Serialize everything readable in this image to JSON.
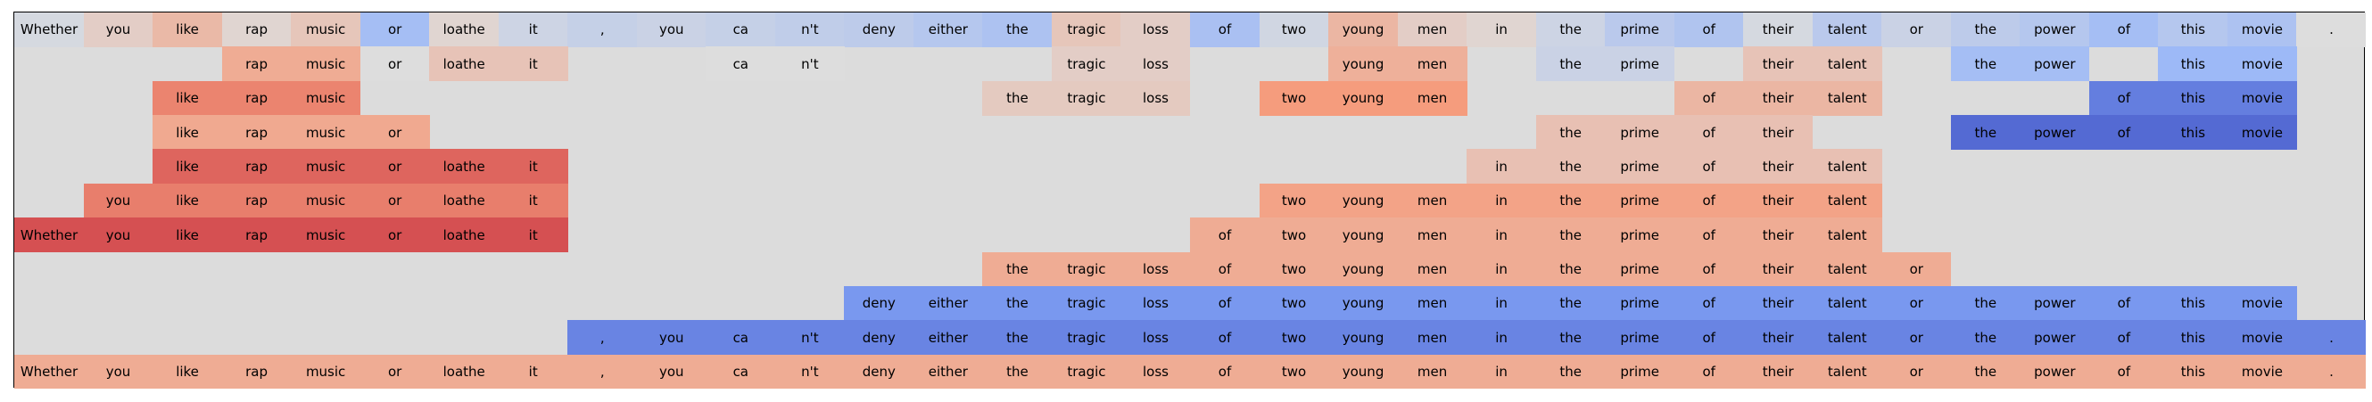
{
  "chart_data": {
    "type": "heatmap",
    "tokens": [
      "Whether",
      "you",
      "like",
      "rap",
      "music",
      "or",
      "loathe",
      "it",
      ",",
      "you",
      "ca",
      "n't",
      "deny",
      "either",
      "the",
      "tragic",
      "loss",
      "of",
      "two",
      "young",
      "men",
      "in",
      "the",
      "prime",
      "of",
      "their",
      "talent",
      "or",
      "the",
      "power",
      "of",
      "this",
      "movie",
      "."
    ],
    "rows": [
      {
        "start": 0,
        "values": [
          -0.05,
          0.12,
          0.28,
          0.06,
          0.18,
          -0.35,
          0.06,
          -0.1,
          -0.15,
          -0.12,
          -0.15,
          -0.18,
          -0.2,
          -0.25,
          -0.3,
          0.18,
          0.12,
          -0.32,
          -0.08,
          0.3,
          0.12,
          0.06,
          -0.1,
          -0.22,
          -0.28,
          -0.05,
          -0.22,
          -0.12,
          -0.2,
          -0.25,
          -0.35,
          -0.25,
          -0.3,
          0.0
        ]
      },
      {
        "start": 3,
        "end": 7,
        "values": [
          0.38,
          0.38,
          0.0,
          0.2,
          0.2
        ]
      },
      {
        "start": 10,
        "end": 11,
        "values": [
          0.0,
          0.0
        ]
      },
      {
        "start": 15,
        "end": 16,
        "values": [
          0.12,
          0.12
        ]
      },
      {
        "start": 19,
        "end": 20,
        "values": [
          0.35,
          0.35
        ]
      },
      {
        "start": 22,
        "end": 23,
        "values": [
          -0.12,
          -0.12
        ]
      },
      {
        "start": 25,
        "end": 26,
        "values": [
          0.2,
          0.2
        ]
      },
      {
        "start": 28,
        "end": 29,
        "values": [
          -0.35,
          -0.35
        ]
      },
      {
        "start": 31,
        "end": 32,
        "values": [
          -0.4,
          -0.4
        ]
      },
      {
        "start": 2,
        "end": 4,
        "values": [
          0.58,
          0.58,
          0.58
        ]
      },
      {
        "start": 14,
        "end": 16,
        "values": [
          0.15,
          0.15,
          0.15
        ]
      },
      {
        "start": 18,
        "end": 20,
        "values": [
          0.5,
          0.5,
          0.5
        ]
      },
      {
        "start": 24,
        "end": 26,
        "values": [
          0.3,
          0.3,
          0.3
        ]
      },
      {
        "start": 30,
        "end": 32,
        "values": [
          -0.75,
          -0.75,
          -0.75
        ]
      },
      {
        "start": 2,
        "end": 5,
        "values": [
          0.4,
          0.4,
          0.4,
          0.4
        ]
      },
      {
        "start": 22,
        "end": 25,
        "values": [
          0.22,
          0.22,
          0.22,
          0.22
        ]
      },
      {
        "start": 28,
        "end": 32,
        "values": [
          -0.85,
          -0.85,
          -0.85,
          -0.85,
          -0.85
        ]
      },
      {
        "start": 2,
        "end": 7,
        "values": [
          0.68,
          0.68,
          0.68,
          0.68,
          0.68,
          0.68
        ]
      },
      {
        "start": 21,
        "end": 26,
        "values": [
          0.22,
          0.22,
          0.22,
          0.22,
          0.22,
          0.22
        ]
      },
      {
        "start": 1,
        "end": 7,
        "values": [
          0.6,
          0.6,
          0.6,
          0.6,
          0.6,
          0.6,
          0.6
        ]
      },
      {
        "start": 18,
        "end": 26,
        "values": [
          0.45,
          0.45,
          0.45,
          0.45,
          0.45,
          0.45,
          0.45,
          0.45,
          0.45
        ]
      },
      {
        "start": 0,
        "end": 7,
        "values": [
          0.75,
          0.75,
          0.75,
          0.75,
          0.75,
          0.75,
          0.75,
          0.75
        ]
      },
      {
        "start": 17,
        "end": 26,
        "values": [
          0.38,
          0.38,
          0.38,
          0.38,
          0.38,
          0.38,
          0.38,
          0.38,
          0.38,
          0.38
        ]
      },
      {
        "start": 14,
        "end": 27,
        "values": [
          0.38,
          0.38,
          0.38,
          0.38,
          0.38,
          0.38,
          0.38,
          0.38,
          0.38,
          0.38,
          0.38,
          0.38,
          0.38,
          0.38
        ]
      },
      {
        "start": 12,
        "end": 32,
        "values": [
          -0.62,
          -0.62,
          -0.62,
          -0.62,
          -0.62,
          -0.62,
          -0.62,
          -0.62,
          -0.62,
          -0.62,
          -0.62,
          -0.62,
          -0.62,
          -0.62,
          -0.62,
          -0.62,
          -0.62,
          -0.62,
          -0.62,
          -0.62,
          -0.62
        ]
      },
      {
        "start": 8,
        "end": 33,
        "values": [
          -0.72,
          -0.72,
          -0.72,
          -0.72,
          -0.72,
          -0.72,
          -0.72,
          -0.72,
          -0.72,
          -0.72,
          -0.72,
          -0.72,
          -0.72,
          -0.72,
          -0.72,
          -0.72,
          -0.72,
          -0.72,
          -0.72,
          -0.72,
          -0.72,
          -0.72,
          -0.72,
          -0.72,
          -0.72,
          -0.72
        ]
      },
      {
        "start": 0,
        "end": 33,
        "values": [
          0.38,
          0.38,
          0.38,
          0.38,
          0.38,
          0.38,
          0.38,
          0.38,
          0.38,
          0.38,
          0.38,
          0.38,
          0.38,
          0.38,
          0.38,
          0.38,
          0.38,
          0.38,
          0.38,
          0.38,
          0.38,
          0.38,
          0.38,
          0.38,
          0.38,
          0.38,
          0.38,
          0.38,
          0.38,
          0.38,
          0.38,
          0.38,
          0.38,
          0.38
        ]
      }
    ],
    "row_layout": [
      [
        0
      ],
      [
        1,
        2,
        3,
        4,
        5,
        6,
        7,
        8
      ],
      [
        9,
        10,
        11,
        12,
        13
      ],
      [
        14,
        15,
        16
      ],
      [
        17,
        18
      ],
      [
        19,
        20
      ],
      [
        21,
        22
      ],
      [
        23
      ],
      [
        24
      ],
      [
        25
      ],
      [
        26
      ]
    ],
    "colormap": "coolwarm",
    "vmin": -1,
    "vmax": 1,
    "background": "#dcdcdc"
  }
}
